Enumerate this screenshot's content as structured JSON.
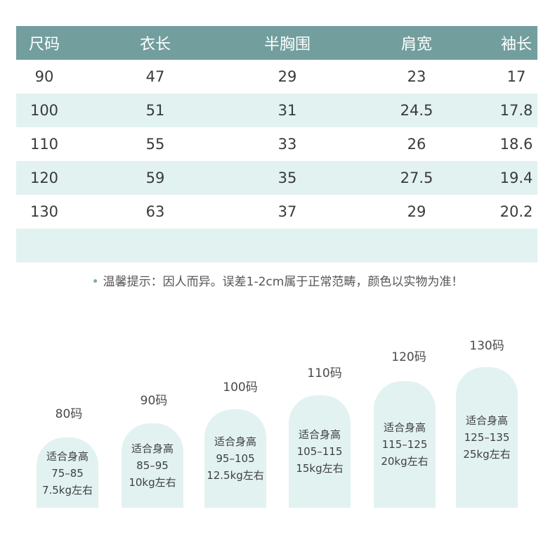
{
  "table": {
    "headers": [
      "尺码",
      "衣长",
      "半胸围",
      "肩宽",
      "袖长"
    ],
    "rows": [
      [
        "90",
        "47",
        "29",
        "23",
        "17"
      ],
      [
        "100",
        "51",
        "31",
        "24.5",
        "17.8"
      ],
      [
        "110",
        "55",
        "33",
        "26",
        "18.6"
      ],
      [
        "120",
        "59",
        "35",
        "27.5",
        "19.4"
      ],
      [
        "130",
        "63",
        "37",
        "29",
        "20.2"
      ]
    ]
  },
  "note": "温馨提示：因人而异。误差1-2cm属于正常范畴，颜色以实物为准！",
  "sizes": [
    {
      "label": "80码",
      "line1": "适合身高",
      "height": "75–85",
      "weight": "7.5kg左右"
    },
    {
      "label": "90码",
      "line1": "适合身高",
      "height": "85–95",
      "weight": "10kg左右"
    },
    {
      "label": "100码",
      "line1": "适合身高",
      "height": "95–105",
      "weight": "12.5kg左右"
    },
    {
      "label": "110码",
      "line1": "适合身高",
      "height": "105–115",
      "weight": "15kg左右"
    },
    {
      "label": "120码",
      "line1": "适合身高",
      "height": "115–125",
      "weight": "20kg左右"
    },
    {
      "label": "130码",
      "line1": "适合身高",
      "height": "125–135",
      "weight": "25kg左右"
    }
  ],
  "colors": {
    "header": "#739e9e",
    "stripe": "#e1f2f1",
    "pillar": "#e1f2f1"
  }
}
